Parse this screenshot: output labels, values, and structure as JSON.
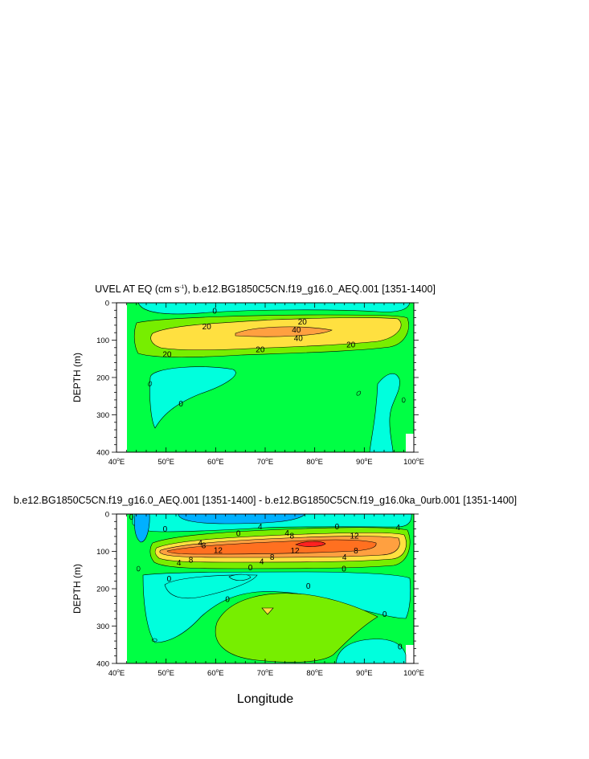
{
  "chart_data": [
    {
      "type": "contour",
      "title": "UVEL AT EQ (cm s-1), b.e12.BG1850C5CN.f19_g16.0_AEQ.001 [1351-1400]",
      "title_parts": {
        "pre": "UVEL AT EQ (cm s",
        "sup": "-1",
        "post": "), b.e12.BG1850C5CN.f19_g16.0_AEQ.001 [1351-1400]"
      },
      "xlabel": "",
      "ylabel": "DEPTH (m)",
      "xlim": [
        40,
        100
      ],
      "ylim": [
        400,
        0
      ],
      "x_ticks": [
        40,
        50,
        60,
        70,
        80,
        90,
        100
      ],
      "x_tick_labels": [
        "40",
        "50",
        "60",
        "70",
        "80",
        "90",
        "100"
      ],
      "x_tick_suffix": {
        "sup": "o",
        "post": "E"
      },
      "y_ticks": [
        0,
        100,
        200,
        300,
        400
      ],
      "y_tick_labels": [
        "0",
        "100",
        "200",
        "300",
        "400"
      ],
      "contour_labels": [
        {
          "text": "0",
          "lon": 59.8,
          "depth": 22
        },
        {
          "text": "20",
          "lon": 58.2,
          "depth": 63
        },
        {
          "text": "20",
          "lon": 77.5,
          "depth": 50
        },
        {
          "text": "40",
          "lon": 76.3,
          "depth": 72
        },
        {
          "text": "40",
          "lon": 76.7,
          "depth": 95
        },
        {
          "text": "20",
          "lon": 87.3,
          "depth": 112
        },
        {
          "text": "20",
          "lon": 69.0,
          "depth": 125
        },
        {
          "text": "20",
          "lon": 50.2,
          "depth": 138
        },
        {
          "text": "0",
          "lon": 53.0,
          "depth": 270
        }
      ],
      "colors": {
        "c_neg10": "#00ffdd",
        "c_0": "#00ff44",
        "c_10": "#77ee00",
        "c_20": "#ffe040",
        "c_40": "#ffa040"
      }
    },
    {
      "type": "contour",
      "title": "b.e12.BG1850C5CN.f19_g16.0_AEQ.001 [1351-1400] - b.e12.BG1850C5CN.f19_g16.0ka_0urb.001 [1351-1400]",
      "xlabel": "Longitude",
      "ylabel": "DEPTH (m)",
      "xlim": [
        40,
        100
      ],
      "ylim": [
        400,
        0
      ],
      "x_ticks": [
        40,
        50,
        60,
        70,
        80,
        90,
        100
      ],
      "x_tick_labels": [
        "40",
        "50",
        "60",
        "70",
        "80",
        "90",
        "100"
      ],
      "x_tick_suffix": {
        "sup": "o",
        "post": "E"
      },
      "y_ticks": [
        0,
        100,
        200,
        300,
        400
      ],
      "y_tick_labels": [
        "0",
        "100",
        "200",
        "300",
        "400"
      ],
      "contour_labels": [
        {
          "text": "0",
          "lon": 43.0,
          "depth": 7
        },
        {
          "text": "0",
          "lon": 49.8,
          "depth": 40
        },
        {
          "text": "4",
          "lon": 69.0,
          "depth": 33
        },
        {
          "text": "0",
          "lon": 84.5,
          "depth": 33
        },
        {
          "text": "0",
          "lon": 64.6,
          "depth": 52
        },
        {
          "text": "4",
          "lon": 74.4,
          "depth": 50
        },
        {
          "text": "8",
          "lon": 75.4,
          "depth": 58
        },
        {
          "text": "12",
          "lon": 88.0,
          "depth": 58
        },
        {
          "text": "4",
          "lon": 96.8,
          "depth": 35
        },
        {
          "text": "4",
          "lon": 56.9,
          "depth": 77
        },
        {
          "text": "8",
          "lon": 57.6,
          "depth": 84
        },
        {
          "text": "12",
          "lon": 60.5,
          "depth": 97
        },
        {
          "text": "12",
          "lon": 76.0,
          "depth": 98
        },
        {
          "text": "8",
          "lon": 88.3,
          "depth": 98
        },
        {
          "text": "4",
          "lon": 86.0,
          "depth": 115
        },
        {
          "text": "8",
          "lon": 55.0,
          "depth": 123
        },
        {
          "text": "4",
          "lon": 52.6,
          "depth": 130
        },
        {
          "text": "8",
          "lon": 71.4,
          "depth": 115
        },
        {
          "text": "4",
          "lon": 69.3,
          "depth": 127
        },
        {
          "text": "0",
          "lon": 67.0,
          "depth": 143
        },
        {
          "text": "0",
          "lon": 85.9,
          "depth": 146
        },
        {
          "text": "0",
          "lon": 50.6,
          "depth": 173
        },
        {
          "text": "0",
          "lon": 78.7,
          "depth": 193
        },
        {
          "text": "0",
          "lon": 62.4,
          "depth": 228
        },
        {
          "text": "0",
          "lon": 94.1,
          "depth": 268
        },
        {
          "text": "0",
          "lon": 97.2,
          "depth": 355
        }
      ],
      "colors": {
        "c_neg4": "#00b0ff",
        "c_neg2": "#00ffdd",
        "c_0": "#00ff44",
        "c_2": "#77ee00",
        "c_4": "#ffe040",
        "c_8": "#ffa040",
        "c_12": "#ff7020",
        "c_16": "#ff2020"
      }
    }
  ]
}
